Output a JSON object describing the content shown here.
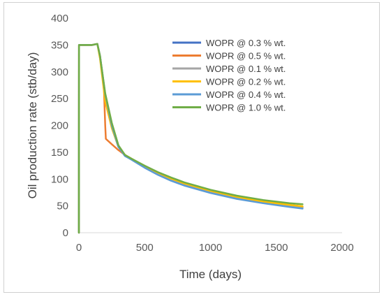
{
  "chart_data": {
    "type": "line",
    "title": "",
    "xlabel": "Time (days)",
    "ylabel": "Oil production rate (stb/day)",
    "xlim": [
      0,
      2000
    ],
    "ylim": [
      0,
      400
    ],
    "xticks": [
      0,
      500,
      1000,
      1500,
      2000
    ],
    "yticks": [
      0,
      50,
      100,
      150,
      200,
      250,
      300,
      350,
      400
    ],
    "grid": false,
    "legend_position": "top-right",
    "series": [
      {
        "name": "WOPR @ 0.3 % wt.",
        "color": "#4472C4",
        "x": [
          0,
          1,
          100,
          140,
          160,
          200,
          250,
          300,
          350,
          400,
          500,
          600,
          700,
          800,
          1000,
          1200,
          1400,
          1600,
          1700
        ],
        "y": [
          0,
          350,
          350,
          352,
          330,
          255,
          200,
          160,
          143,
          137,
          122,
          110,
          99,
          90,
          76,
          65,
          56,
          50,
          47
        ]
      },
      {
        "name": "WOPR @ 0.5 % wt.",
        "color": "#ED7D31",
        "x": [
          0,
          1,
          100,
          140,
          160,
          190,
          200,
          205,
          250,
          300,
          350,
          400,
          500,
          600,
          700,
          800,
          1000,
          1200,
          1400,
          1600,
          1700
        ],
        "y": [
          0,
          350,
          350,
          352,
          330,
          270,
          200,
          175,
          165,
          154,
          145,
          137,
          123,
          111,
          100,
          91,
          77,
          66,
          58,
          52,
          49
        ]
      },
      {
        "name": "WOPR @ 0.1 % wt.",
        "color": "#A5A5A5",
        "x": [
          0,
          1,
          100,
          140,
          160,
          200,
          250,
          300,
          350,
          400,
          500,
          600,
          700,
          800,
          1000,
          1200,
          1400,
          1600,
          1700
        ],
        "y": [
          0,
          350,
          350,
          352,
          330,
          257,
          203,
          162,
          144,
          138,
          123,
          111,
          100,
          91,
          77,
          66,
          57,
          51,
          48
        ]
      },
      {
        "name": "WOPR @ 0.2 % wt.",
        "color": "#FFC000",
        "x": [
          0,
          1,
          100,
          140,
          160,
          200,
          250,
          300,
          350,
          400,
          500,
          600,
          700,
          800,
          1000,
          1200,
          1400,
          1600,
          1700
        ],
        "y": [
          0,
          350,
          350,
          352,
          325,
          245,
          195,
          160,
          145,
          138,
          124,
          112,
          101,
          92,
          78,
          67,
          58,
          52,
          49
        ]
      },
      {
        "name": "WOPR @ 0.4 % wt.",
        "color": "#5B9BD5",
        "x": [
          0,
          1,
          100,
          140,
          160,
          200,
          250,
          300,
          350,
          400,
          500,
          600,
          700,
          800,
          1000,
          1200,
          1400,
          1600,
          1700
        ],
        "y": [
          0,
          350,
          350,
          352,
          330,
          258,
          200,
          160,
          143,
          136,
          121,
          108,
          97,
          88,
          74,
          63,
          55,
          48,
          45
        ]
      },
      {
        "name": "WOPR @ 1.0 % wt.",
        "color": "#70AD47",
        "x": [
          0,
          1,
          100,
          140,
          160,
          200,
          250,
          300,
          350,
          400,
          500,
          600,
          700,
          800,
          1000,
          1200,
          1400,
          1600,
          1700
        ],
        "y": [
          0,
          350,
          350,
          352,
          330,
          260,
          205,
          163,
          145,
          138,
          125,
          113,
          103,
          94,
          80,
          69,
          61,
          55,
          53
        ]
      }
    ]
  }
}
